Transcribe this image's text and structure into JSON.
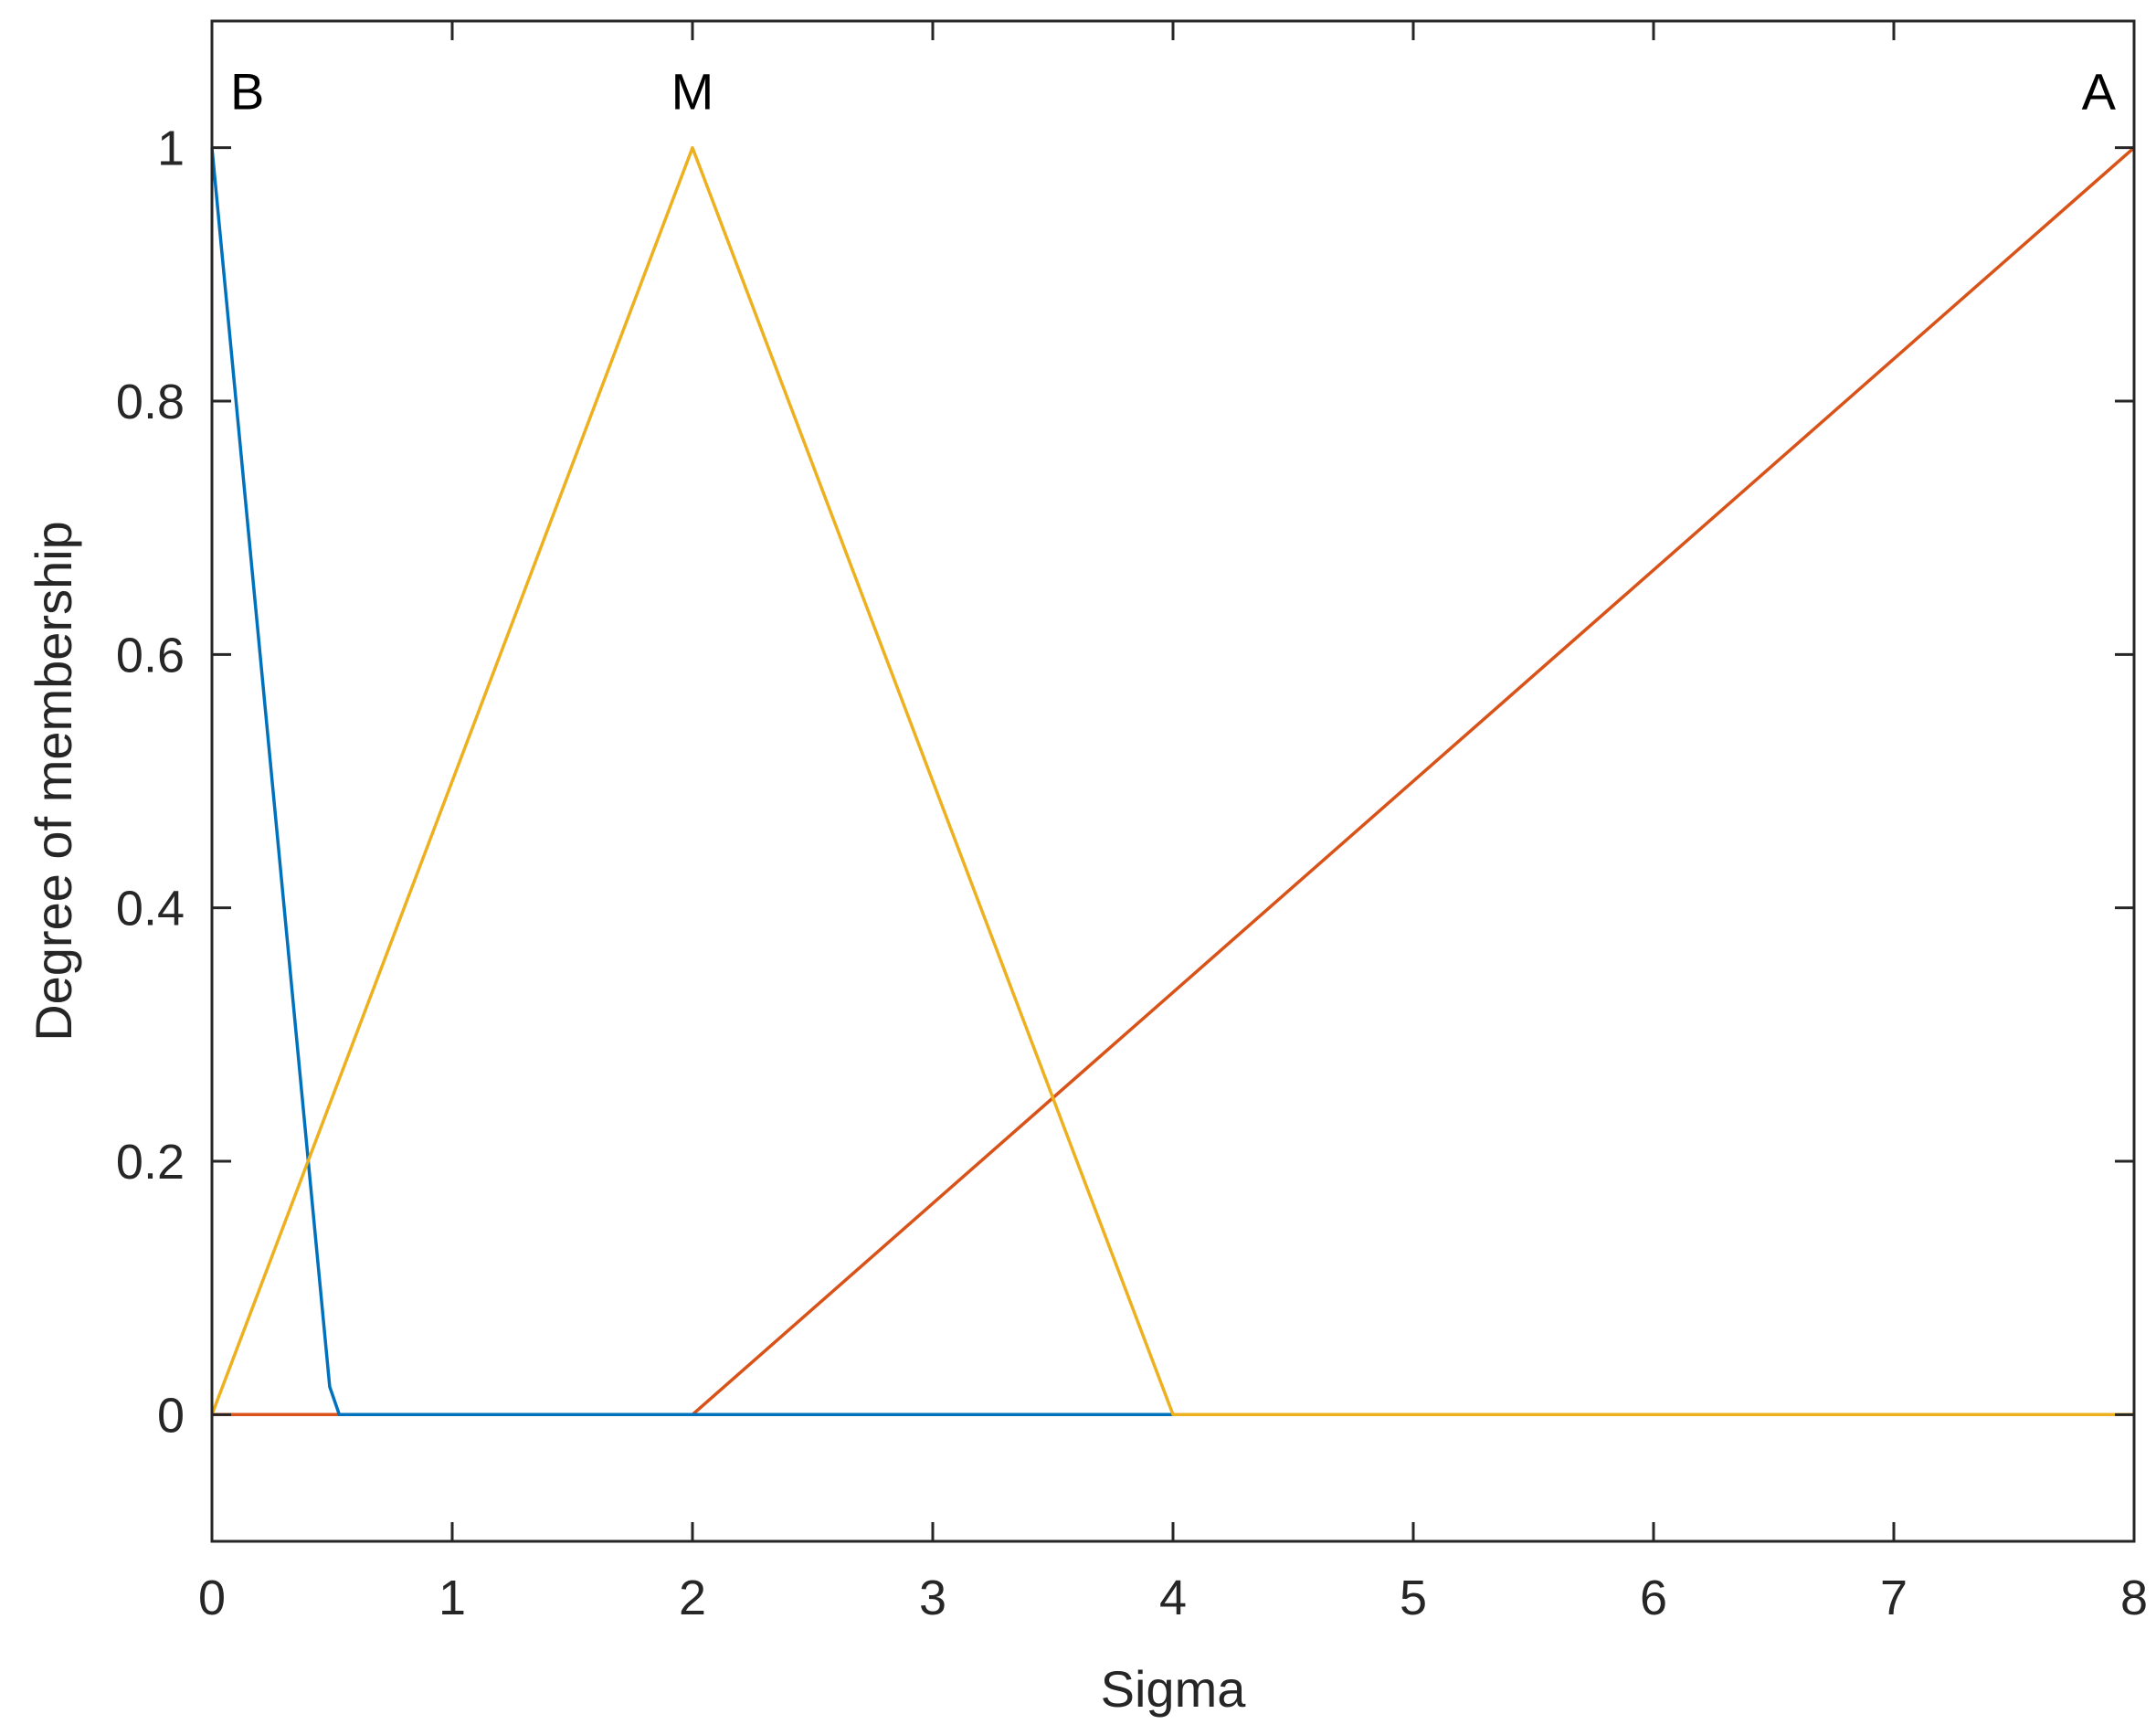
{
  "chart_data": {
    "type": "line",
    "title": "",
    "xlabel": "Sigma",
    "ylabel": "Degree of membership",
    "xlim": [
      0,
      8
    ],
    "ylim": [
      -0.1,
      1.1
    ],
    "xticks": [
      0,
      1,
      2,
      3,
      4,
      5,
      6,
      7,
      8
    ],
    "yticks": [
      0,
      0.2,
      0.4,
      0.6,
      0.8,
      1
    ],
    "xtick_labels": [
      "0",
      "1",
      "2",
      "3",
      "4",
      "5",
      "6",
      "7",
      "8"
    ],
    "ytick_labels": [
      "0",
      "0.2",
      "0.4",
      "0.6",
      "0.8",
      "1"
    ],
    "grid": false,
    "series": [
      {
        "label": "B",
        "color": "#0072BD",
        "x": [
          0,
          0.49,
          0.53,
          2,
          8
        ],
        "y": [
          1,
          0.022,
          0,
          0,
          0
        ]
      },
      {
        "label": "M",
        "color": "#EDB120",
        "x": [
          0,
          2,
          4,
          8
        ],
        "y": [
          0,
          1,
          0,
          0
        ]
      },
      {
        "label": "A",
        "color": "#D95319",
        "x": [
          0,
          2,
          8
        ],
        "y": [
          0,
          0,
          1
        ]
      }
    ]
  }
}
